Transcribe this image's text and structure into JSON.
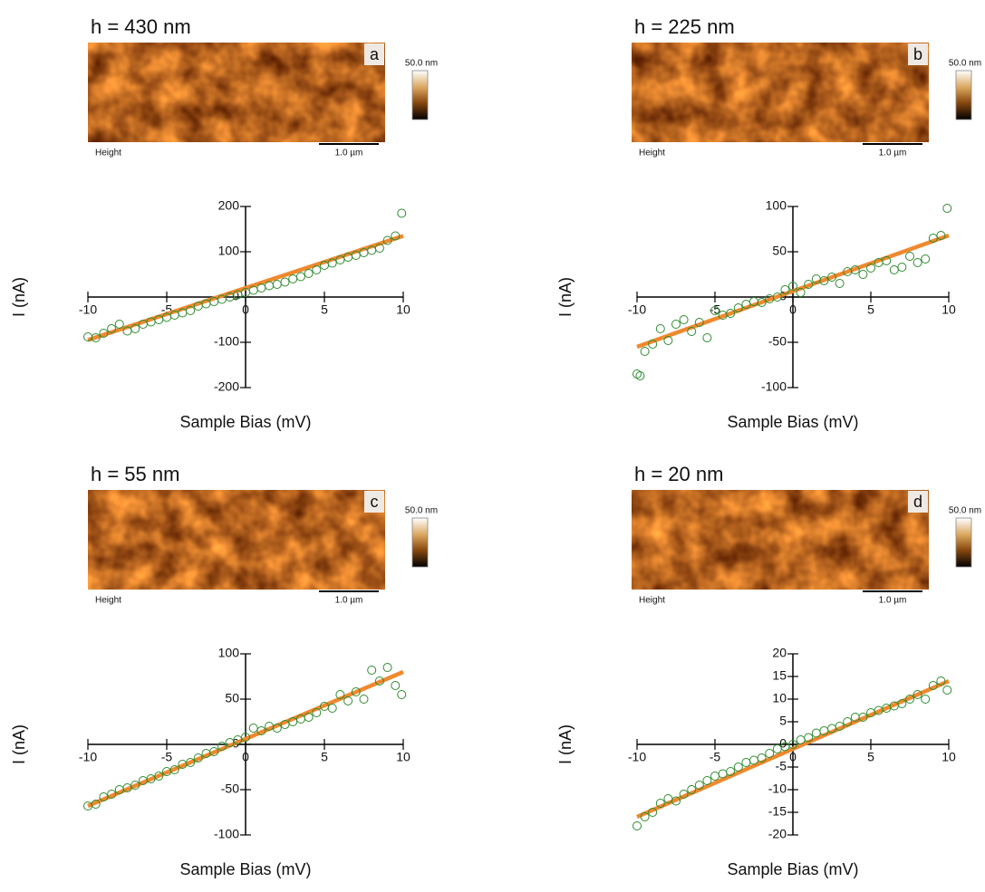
{
  "chart_data": [
    {
      "type": "scatter",
      "title": "h = 430 nm",
      "image": {
        "label": "a",
        "scale_max": "50.0 nm",
        "channel": "Height",
        "scale_bar": "1.0 µm"
      },
      "xlabel": "Sample Bias (mV)",
      "ylabel": "I (nA)",
      "xlim": [
        -10,
        10
      ],
      "ylim": [
        -200,
        200
      ],
      "xticks": [
        -10,
        -5,
        0,
        5,
        10
      ],
      "yticks": [
        -200,
        -100,
        0,
        100,
        200
      ],
      "series": [
        {
          "mode": "line",
          "color": "#f0892e",
          "x": [
            -10,
            10
          ],
          "values": [
            -95,
            135
          ]
        },
        {
          "mode": "markers",
          "color": "#2e8b2e",
          "x": [
            -10,
            -9.5,
            -9,
            -8.5,
            -8,
            -7.5,
            -7,
            -6.5,
            -6,
            -5.5,
            -5,
            -4.5,
            -4,
            -3.5,
            -3,
            -2.5,
            -2,
            -1.5,
            -1,
            -0.5,
            0,
            0.5,
            1,
            1.5,
            2,
            2.5,
            3,
            3.5,
            4,
            4.5,
            5,
            5.5,
            6,
            6.5,
            7,
            7.5,
            8,
            8.5,
            9,
            9.5,
            9.9
          ],
          "values": [
            -88,
            -90,
            -80,
            -70,
            -60,
            -75,
            -70,
            -60,
            -55,
            -50,
            -45,
            -40,
            -35,
            -30,
            -20,
            -15,
            -10,
            -5,
            0,
            5,
            10,
            15,
            20,
            25,
            28,
            33,
            40,
            45,
            52,
            60,
            70,
            75,
            82,
            88,
            92,
            98,
            103,
            108,
            125,
            135,
            185
          ]
        }
      ]
    },
    {
      "type": "scatter",
      "title": "h = 225 nm",
      "image": {
        "label": "b",
        "scale_max": "50.0 nm",
        "channel": "Height",
        "scale_bar": "1.0 µm"
      },
      "xlabel": "Sample Bias (mV)",
      "ylabel": "I (nA)",
      "xlim": [
        -10,
        10
      ],
      "ylim": [
        -100,
        100
      ],
      "xticks": [
        -10,
        -5,
        0,
        5,
        10
      ],
      "yticks": [
        -100,
        -50,
        0,
        50,
        100
      ],
      "series": [
        {
          "mode": "line",
          "color": "#f0892e",
          "x": [
            -10,
            10
          ],
          "values": [
            -55,
            68
          ]
        },
        {
          "mode": "markers",
          "color": "#2e8b2e",
          "x": [
            -10,
            -9.8,
            -9.5,
            -9,
            -8.5,
            -8,
            -7.5,
            -7,
            -6.5,
            -6,
            -5.5,
            -5,
            -4.5,
            -4,
            -3.5,
            -3,
            -2.5,
            -2,
            -1.5,
            -1,
            -0.5,
            0,
            0.5,
            1,
            1.5,
            2,
            2.5,
            3,
            3.5,
            4,
            4.5,
            5,
            5.5,
            6,
            6.5,
            7,
            7.5,
            8,
            8.5,
            9,
            9.5,
            9.9
          ],
          "values": [
            -85,
            -87,
            -60,
            -52,
            -35,
            -48,
            -30,
            -25,
            -38,
            -28,
            -45,
            -15,
            -20,
            -18,
            -12,
            -8,
            -5,
            -6,
            -2,
            0,
            8,
            12,
            5,
            14,
            20,
            18,
            22,
            15,
            28,
            30,
            25,
            32,
            38,
            40,
            30,
            33,
            45,
            38,
            42,
            65,
            68,
            98
          ]
        }
      ]
    },
    {
      "type": "scatter",
      "title": "h = 55 nm",
      "image": {
        "label": "c",
        "scale_max": "50.0 nm",
        "channel": "Height",
        "scale_bar": "1.0 µm"
      },
      "xlabel": "Sample Bias (mV)",
      "ylabel": "I (nA)",
      "xlim": [
        -10,
        10
      ],
      "ylim": [
        -100,
        100
      ],
      "xticks": [
        -10,
        -5,
        0,
        5,
        10
      ],
      "yticks": [
        -100,
        -50,
        0,
        50,
        100
      ],
      "series": [
        {
          "mode": "line",
          "color": "#f0892e",
          "x": [
            -10,
            10
          ],
          "values": [
            -68,
            80
          ]
        },
        {
          "mode": "markers",
          "color": "#2e8b2e",
          "x": [
            -10,
            -9.5,
            -9,
            -8.5,
            -8,
            -7.5,
            -7,
            -6.5,
            -6,
            -5.5,
            -5,
            -4.5,
            -4,
            -3.5,
            -3,
            -2.5,
            -2,
            -1.5,
            -1,
            -0.5,
            0,
            0.5,
            1,
            1.5,
            2,
            2.5,
            3,
            3.5,
            4,
            4.5,
            5,
            5.5,
            6,
            6.5,
            7,
            7.5,
            8,
            8.5,
            9,
            9.5,
            9.9
          ],
          "values": [
            -68,
            -66,
            -58,
            -55,
            -50,
            -48,
            -45,
            -40,
            -38,
            -35,
            -30,
            -28,
            -22,
            -20,
            -15,
            -10,
            -8,
            -2,
            2,
            5,
            8,
            18,
            15,
            20,
            18,
            22,
            25,
            28,
            30,
            35,
            42,
            40,
            55,
            48,
            58,
            50,
            82,
            70,
            85,
            65,
            55
          ]
        }
      ]
    },
    {
      "type": "scatter",
      "title": "h = 20 nm",
      "image": {
        "label": "d",
        "scale_max": "50.0 nm",
        "channel": "Height",
        "scale_bar": "1.0 µm"
      },
      "xlabel": "Sample Bias (mV)",
      "ylabel": "I (nA)",
      "xlim": [
        -10,
        10
      ],
      "ylim": [
        -20,
        20
      ],
      "xticks": [
        -10,
        -5,
        0,
        5,
        10
      ],
      "yticks": [
        -20,
        -15,
        -10,
        -5,
        0,
        5,
        10,
        15,
        20
      ],
      "series": [
        {
          "mode": "line",
          "color": "#f0892e",
          "x": [
            -10,
            10
          ],
          "values": [
            -16,
            14
          ]
        },
        {
          "mode": "markers",
          "color": "#2e8b2e",
          "x": [
            -10,
            -9.5,
            -9,
            -8.5,
            -8,
            -7.5,
            -7,
            -6.5,
            -6,
            -5.5,
            -5,
            -4.5,
            -4,
            -3.5,
            -3,
            -2.5,
            -2,
            -1.5,
            -1,
            -0.5,
            0,
            0.5,
            1,
            1.5,
            2,
            2.5,
            3,
            3.5,
            4,
            4.5,
            5,
            5.5,
            6,
            6.5,
            7,
            7.5,
            8,
            8.5,
            9,
            9.5,
            9.9
          ],
          "values": [
            -18,
            -16,
            -15,
            -13,
            -12,
            -12.5,
            -11,
            -10,
            -9,
            -8,
            -7,
            -6.5,
            -6,
            -5,
            -4,
            -3.5,
            -3,
            -2,
            -1,
            -0.5,
            0,
            1,
            1.5,
            2.5,
            3,
            3.5,
            4,
            5,
            6,
            6,
            7,
            7.5,
            8,
            8.5,
            9,
            10,
            11,
            10,
            13,
            14,
            12
          ]
        }
      ]
    }
  ]
}
